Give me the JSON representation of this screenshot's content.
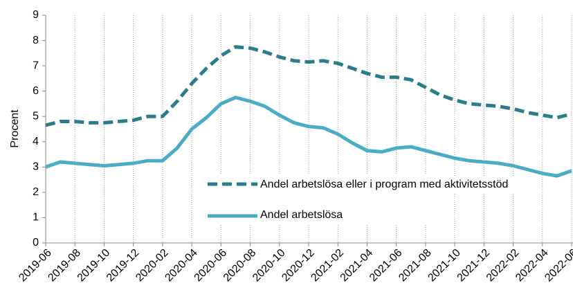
{
  "chart_data": {
    "type": "line",
    "y_label": "Procent",
    "categories": [
      "2019-06",
      null,
      "2019-08",
      null,
      "2019-10",
      null,
      "2019-12",
      null,
      "2020-02",
      null,
      "2020-04",
      null,
      "2020-06",
      null,
      "2020-08",
      null,
      "2020-10",
      null,
      "2020-12",
      null,
      "2021-02",
      null,
      "2021-04",
      null,
      "2021-06",
      null,
      "2021-08",
      null,
      "2021-10",
      null,
      "2021-12",
      null,
      "2022-02",
      null,
      "2022-04",
      null,
      "2022-06"
    ],
    "series": [
      {
        "name": "Andel arbetslösa eller i program med aktivitetsstöd",
        "color": "#2b7c8c",
        "dash": true,
        "values": [
          4.65,
          4.8,
          4.8,
          4.75,
          4.75,
          4.8,
          4.85,
          5.0,
          5.0,
          5.6,
          6.3,
          6.9,
          7.4,
          7.75,
          7.7,
          7.55,
          7.35,
          7.2,
          7.15,
          7.2,
          7.1,
          6.9,
          6.7,
          6.55,
          6.55,
          6.45,
          6.15,
          5.85,
          5.65,
          5.5,
          5.45,
          5.4,
          5.3,
          5.15,
          5.05,
          4.95,
          5.1
        ]
      },
      {
        "name": "Andel arbetslösa",
        "color": "#4bacc6",
        "dash": false,
        "values": [
          3.0,
          3.2,
          3.15,
          3.1,
          3.05,
          3.1,
          3.15,
          3.25,
          3.25,
          3.75,
          4.5,
          4.95,
          5.5,
          5.75,
          5.6,
          5.4,
          5.05,
          4.75,
          4.6,
          4.55,
          4.3,
          3.95,
          3.65,
          3.6,
          3.75,
          3.8,
          3.65,
          3.5,
          3.35,
          3.25,
          3.2,
          3.15,
          3.05,
          2.9,
          2.75,
          2.65,
          2.85
        ]
      }
    ],
    "ylim": [
      0,
      9
    ],
    "yticks": [
      0,
      1,
      2,
      3,
      4,
      5,
      6,
      7,
      8,
      9
    ],
    "grid": "x"
  }
}
